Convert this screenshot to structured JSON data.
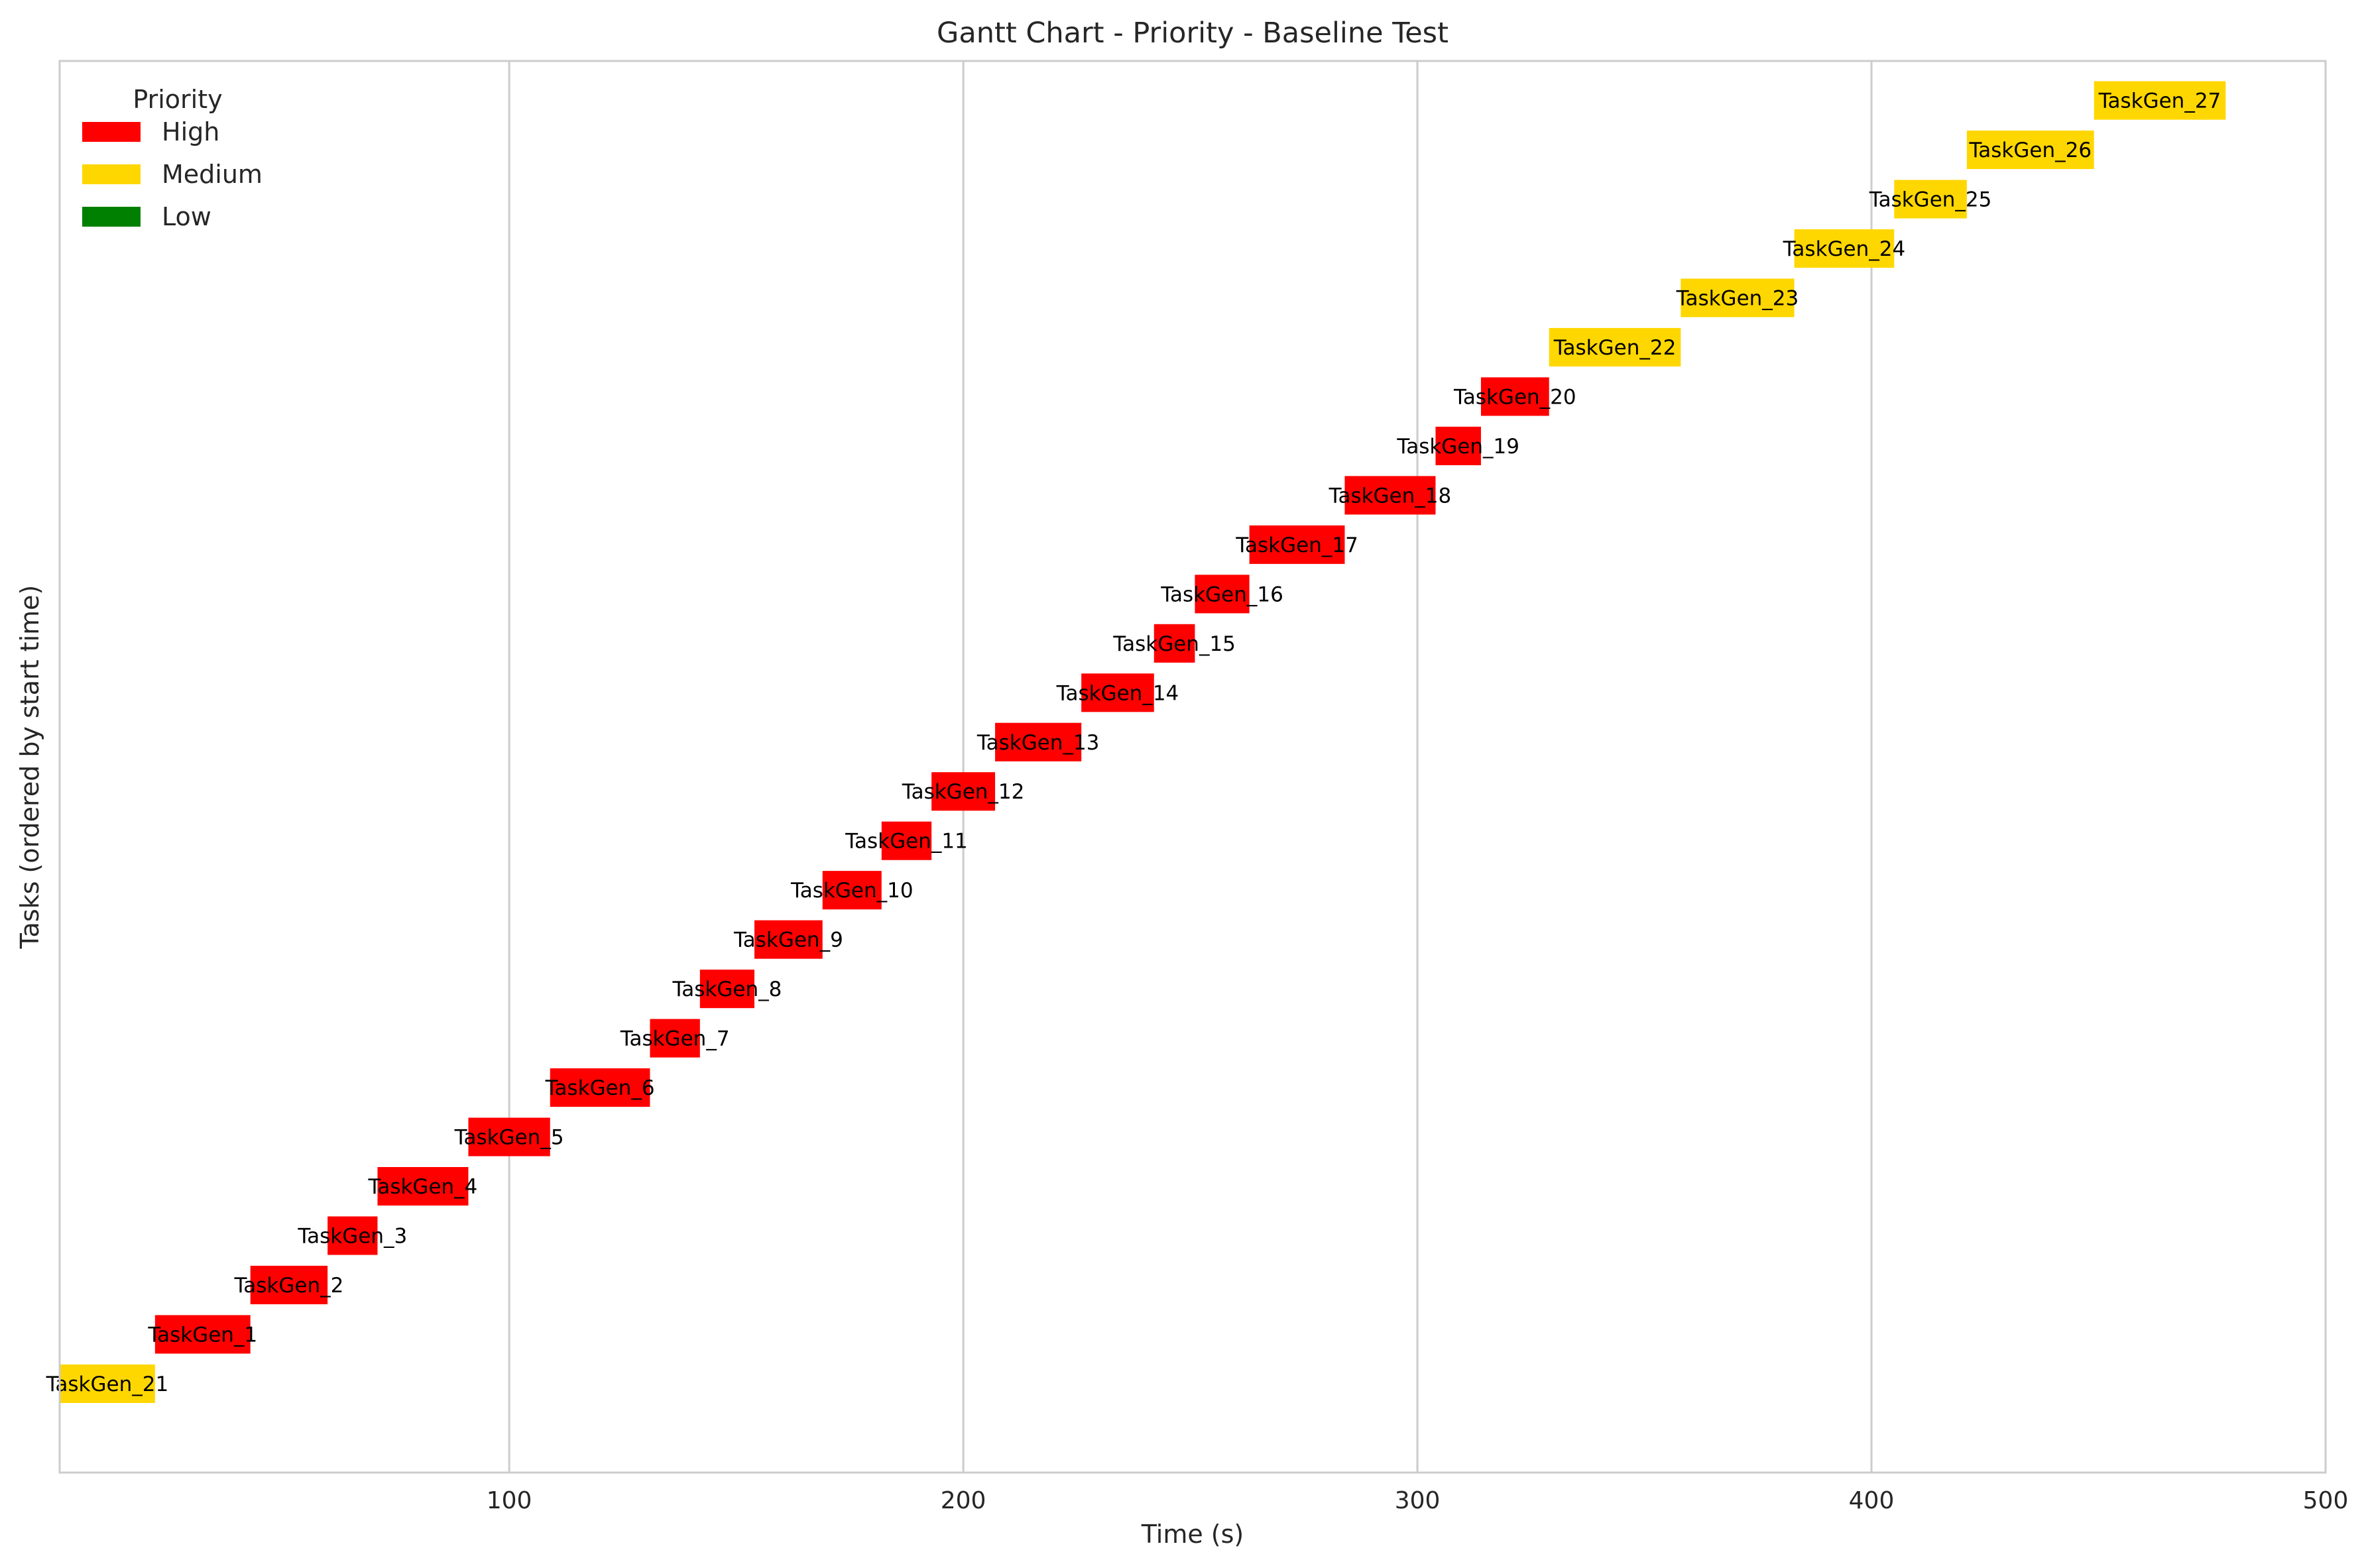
{
  "chart_data": {
    "type": "gantt",
    "title": "Gantt Chart - Priority - Baseline Test",
    "xlabel": "Time (s)",
    "ylabel": "Tasks (ordered by start time)",
    "xlim": [
      1,
      500
    ],
    "x_ticks": [
      100,
      200,
      300,
      400,
      500
    ],
    "grid": "vertical gridlines at x ticks",
    "legend": {
      "title": "Priority",
      "placement": "top-left",
      "entries": [
        {
          "label": "High",
          "color": "#ff0000"
        },
        {
          "label": "Medium",
          "color": "#ffd700"
        },
        {
          "label": "Low",
          "color": "#008000"
        }
      ]
    },
    "colors": {
      "High": "#ff0000",
      "Medium": "#ffd700",
      "Low": "#008000"
    },
    "tasks": [
      {
        "name": "TaskGen_21",
        "start": 1,
        "end": 22,
        "priority": "Medium"
      },
      {
        "name": "TaskGen_1",
        "start": 22,
        "end": 43,
        "priority": "High"
      },
      {
        "name": "TaskGen_2",
        "start": 43,
        "end": 60,
        "priority": "High"
      },
      {
        "name": "TaskGen_3",
        "start": 60,
        "end": 71,
        "priority": "High"
      },
      {
        "name": "TaskGen_4",
        "start": 71,
        "end": 91,
        "priority": "High"
      },
      {
        "name": "TaskGen_5",
        "start": 91,
        "end": 109,
        "priority": "High"
      },
      {
        "name": "TaskGen_6",
        "start": 109,
        "end": 131,
        "priority": "High"
      },
      {
        "name": "TaskGen_7",
        "start": 131,
        "end": 142,
        "priority": "High"
      },
      {
        "name": "TaskGen_8",
        "start": 142,
        "end": 154,
        "priority": "High"
      },
      {
        "name": "TaskGen_9",
        "start": 154,
        "end": 169,
        "priority": "High"
      },
      {
        "name": "TaskGen_10",
        "start": 169,
        "end": 182,
        "priority": "High"
      },
      {
        "name": "TaskGen_11",
        "start": 182,
        "end": 193,
        "priority": "High"
      },
      {
        "name": "TaskGen_12",
        "start": 193,
        "end": 207,
        "priority": "High"
      },
      {
        "name": "TaskGen_13",
        "start": 207,
        "end": 226,
        "priority": "High"
      },
      {
        "name": "TaskGen_14",
        "start": 226,
        "end": 242,
        "priority": "High"
      },
      {
        "name": "TaskGen_15",
        "start": 242,
        "end": 251,
        "priority": "High"
      },
      {
        "name": "TaskGen_16",
        "start": 251,
        "end": 263,
        "priority": "High"
      },
      {
        "name": "TaskGen_17",
        "start": 263,
        "end": 284,
        "priority": "High"
      },
      {
        "name": "TaskGen_18",
        "start": 284,
        "end": 304,
        "priority": "High"
      },
      {
        "name": "TaskGen_19",
        "start": 304,
        "end": 314,
        "priority": "High"
      },
      {
        "name": "TaskGen_20",
        "start": 314,
        "end": 329,
        "priority": "High"
      },
      {
        "name": "TaskGen_22",
        "start": 329,
        "end": 358,
        "priority": "Medium"
      },
      {
        "name": "TaskGen_23",
        "start": 358,
        "end": 383,
        "priority": "Medium"
      },
      {
        "name": "TaskGen_24",
        "start": 383,
        "end": 405,
        "priority": "Medium"
      },
      {
        "name": "TaskGen_25",
        "start": 405,
        "end": 421,
        "priority": "Medium"
      },
      {
        "name": "TaskGen_26",
        "start": 421,
        "end": 449,
        "priority": "Medium"
      },
      {
        "name": "TaskGen_27",
        "start": 449,
        "end": 478,
        "priority": "Medium"
      }
    ]
  }
}
